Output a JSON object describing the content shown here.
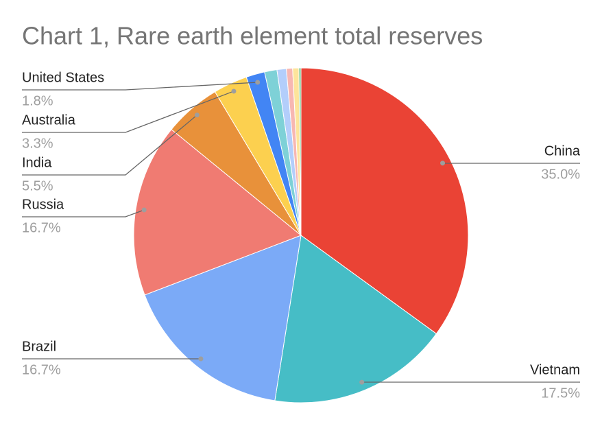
{
  "chart_data": {
    "type": "pie",
    "title": "Chart 1, Rare earth element total reserves",
    "categories": [
      "China",
      "Vietnam",
      "Brazil",
      "Russia",
      "India",
      "Australia",
      "United States",
      null,
      null,
      null,
      null,
      null
    ],
    "values": [
      35.0,
      17.5,
      16.7,
      16.7,
      5.5,
      3.3,
      1.8,
      1.2,
      0.9,
      0.6,
      0.6,
      0.2
    ],
    "value_labels": [
      "35.0%",
      "17.5%",
      "16.7%",
      "16.7%",
      "5.5%",
      "3.3%",
      "1.8%",
      null,
      null,
      null,
      null,
      null
    ],
    "colors": [
      "#ea4335",
      "#46bdc6",
      "#7baaf7",
      "#f07b72",
      "#e8913a",
      "#fcd04f",
      "#4285f4",
      "#7ed1d7",
      "#b3cefb",
      "#f7b7b2",
      "#fde49b",
      "#71c287"
    ]
  }
}
